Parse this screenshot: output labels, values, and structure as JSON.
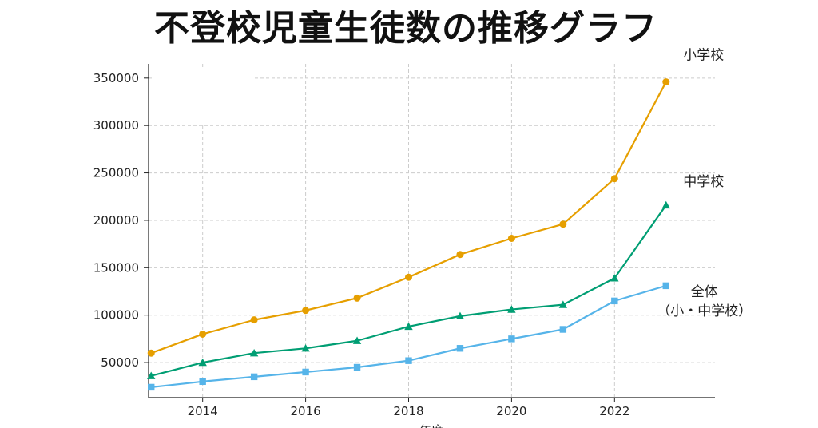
{
  "chart_data": {
    "type": "line",
    "title": "不登校児童生徒数の推移グラフ",
    "xlabel": "年度",
    "ylabel": "",
    "x": [
      2013,
      2014,
      2015,
      2016,
      2017,
      2018,
      2019,
      2020,
      2021,
      2022,
      2023
    ],
    "xticks": [
      2014,
      2016,
      2018,
      2020,
      2022
    ],
    "yticks": [
      50000,
      100000,
      150000,
      200000,
      250000,
      300000,
      350000
    ],
    "xlim": [
      2012.95,
      2023.95
    ],
    "ylim": [
      13000,
      365000
    ],
    "grid": true,
    "series": [
      {
        "name": "小学校",
        "label_lines": [
          "小学校"
        ],
        "color": "#E69F00",
        "marker": "circle",
        "values": [
          60000,
          80000,
          95000,
          105000,
          118000,
          140000,
          164000,
          181000,
          196000,
          244000,
          346000
        ]
      },
      {
        "name": "中学校",
        "label_lines": [
          "中学校"
        ],
        "color": "#009E73",
        "marker": "triangle",
        "values": [
          36000,
          50000,
          60000,
          65000,
          73000,
          88000,
          99000,
          106000,
          111000,
          139000,
          216000
        ]
      },
      {
        "name": "全体（小・中学校）",
        "label_lines": [
          "全体",
          "（小・中学校）"
        ],
        "color": "#56B4E9",
        "marker": "square",
        "values": [
          24000,
          30000,
          35000,
          40000,
          45000,
          52000,
          65000,
          75000,
          85000,
          115000,
          131000
        ]
      }
    ]
  }
}
